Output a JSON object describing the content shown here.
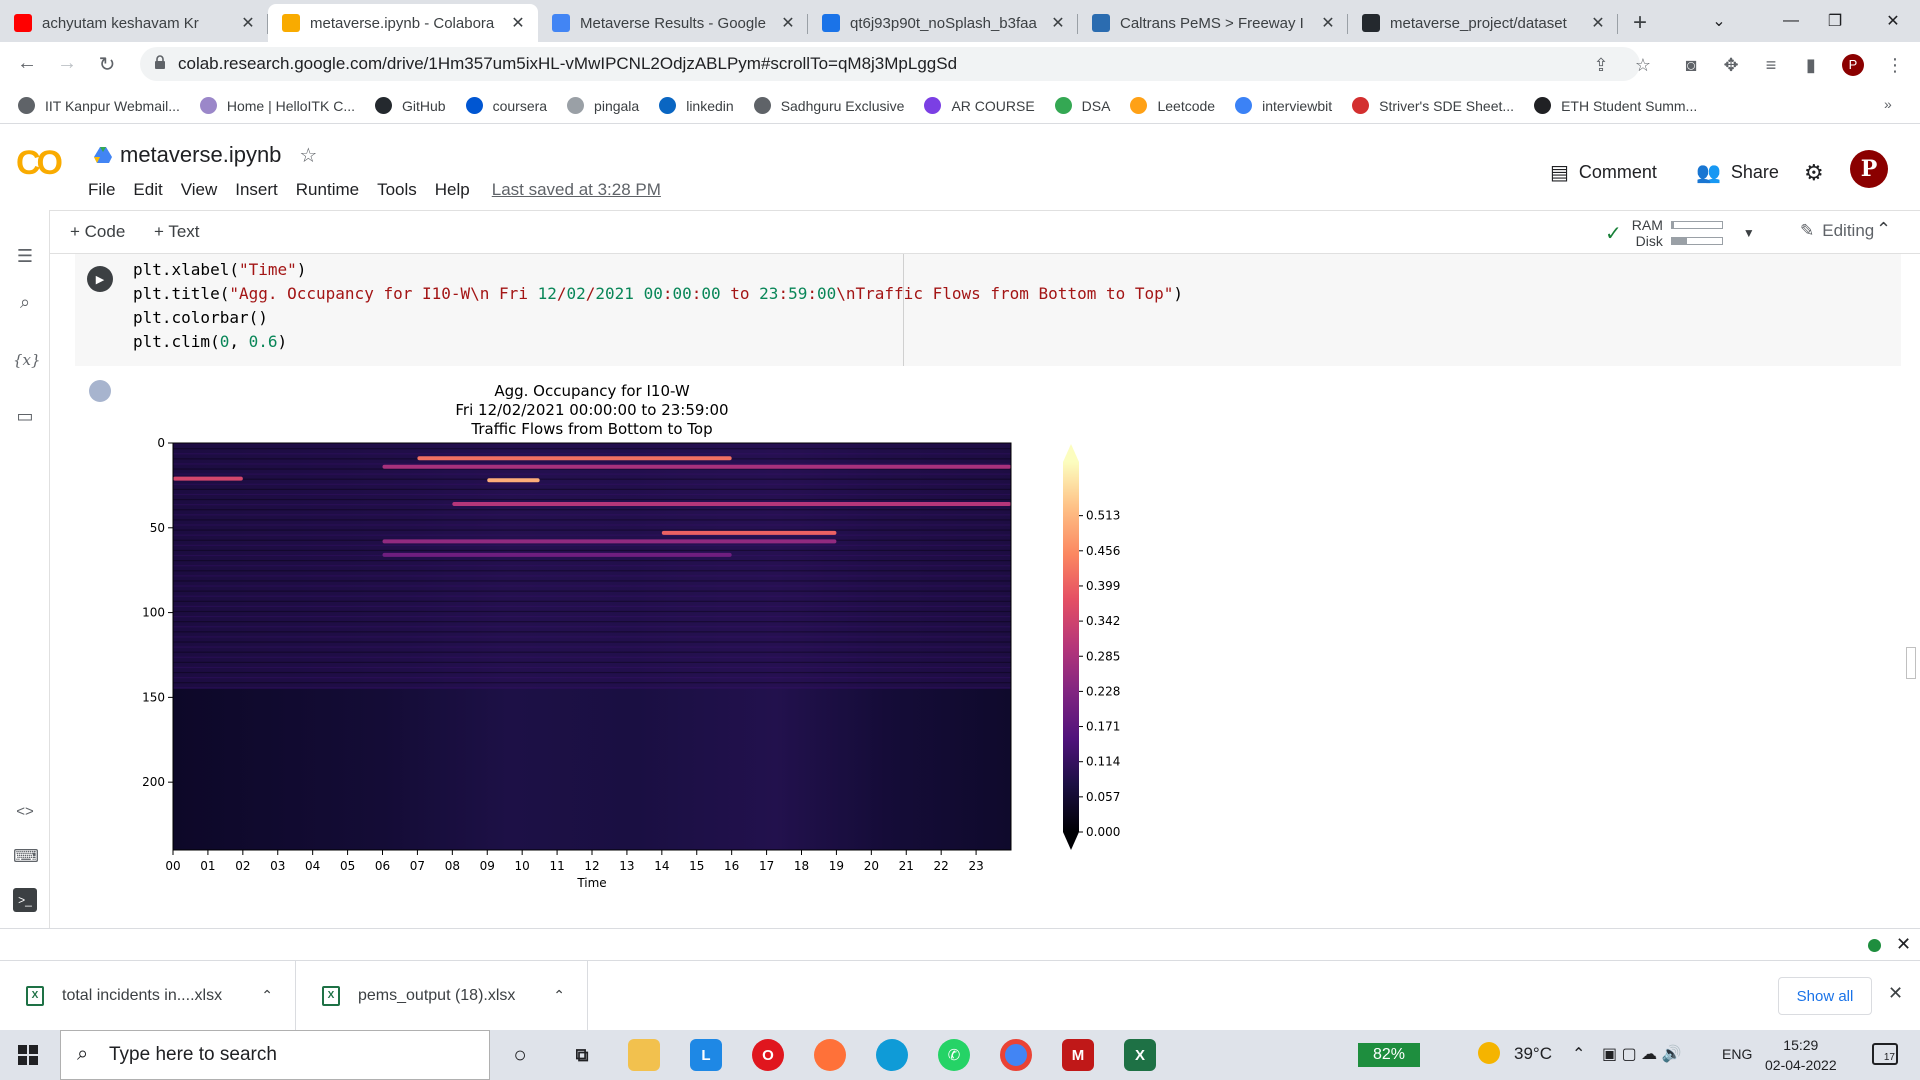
{
  "browser": {
    "tabs": [
      {
        "title": "achyutam keshavam Kr",
        "favicon": "youtube-icon",
        "color": "#ff0000"
      },
      {
        "title": "metaverse.ipynb - Colabora",
        "favicon": "colab-icon",
        "color": "#f9ab00",
        "active": true
      },
      {
        "title": "Metaverse Results - Google",
        "favicon": "docs-icon",
        "color": "#4285f4"
      },
      {
        "title": "qt6j93p90t_noSplash_b3faa",
        "favicon": "loading-icon",
        "color": "#1a73e8"
      },
      {
        "title": "Caltrans PeMS > Freeway I",
        "favicon": "pems-icon",
        "color": "#2b6cb0"
      },
      {
        "title": "metaverse_project/dataset",
        "favicon": "github-icon",
        "color": "#24292e"
      }
    ],
    "url": "colab.research.google.com/drive/1Hm357um5ixHL-vMwIPCNL2OdjzABLPym#scrollTo=qM8j3MpLggSd",
    "bookmarks": [
      {
        "label": "IIT Kanpur Webmail...",
        "color": "#5f6368"
      },
      {
        "label": "Home | HelloITK C...",
        "color": "#9b87c9"
      },
      {
        "label": "GitHub",
        "color": "#24292e"
      },
      {
        "label": "coursera",
        "color": "#0056d2"
      },
      {
        "label": "pingala",
        "color": "#9aa0a6"
      },
      {
        "label": "linkedin",
        "color": "#0a66c2"
      },
      {
        "label": "Sadhguru Exclusive",
        "color": "#5f6368"
      },
      {
        "label": "AR COURSE",
        "color": "#7b3fe4"
      },
      {
        "label": "DSA",
        "color": "#34a853"
      },
      {
        "label": "Leetcode",
        "color": "#ffa116"
      },
      {
        "label": "interviewbit",
        "color": "#3b82f6"
      },
      {
        "label": "Striver's SDE Sheet...",
        "color": "#d32f2f"
      },
      {
        "label": "ETH Student Summ...",
        "color": "#202124"
      }
    ]
  },
  "colab": {
    "notebook_name": "metaverse.ipynb",
    "menus": [
      "File",
      "Edit",
      "View",
      "Insert",
      "Runtime",
      "Tools",
      "Help"
    ],
    "last_saved": "Last saved at 3:28 PM",
    "comment_label": "Comment",
    "share_label": "Share",
    "avatar_letter": "P",
    "add_code": "+ Code",
    "add_text": "+ Text",
    "ram_label": "RAM",
    "disk_label": "Disk",
    "ram_fraction": 0.05,
    "disk_fraction": 0.3,
    "editing_label": "Editing"
  },
  "cell": {
    "code_lines": [
      "plt.xlabel(\"Time\")",
      "plt.title(\"Agg. Occupancy for I10-W\\n Fri 12/02/2021 00:00:00 to 23:59:00\\nTraffic Flows from Bottom to Top\")",
      "plt.colorbar()",
      "plt.clim(0, 0.6)"
    ]
  },
  "chart_data": {
    "type": "heatmap",
    "title_lines": [
      "Agg. Occupancy for I10-W",
      "Fri 12/02/2021 00:00:00 to 23:59:00",
      "Traffic Flows from Bottom to Top"
    ],
    "xlabel": "Time",
    "x_ticks": [
      "00",
      "01",
      "02",
      "03",
      "04",
      "05",
      "06",
      "07",
      "08",
      "09",
      "10",
      "11",
      "12",
      "13",
      "14",
      "15",
      "16",
      "17",
      "18",
      "19",
      "20",
      "21",
      "22",
      "23"
    ],
    "y_ticks": [
      0,
      50,
      100,
      150,
      200
    ],
    "y_range": [
      0,
      240
    ],
    "x_range": [
      0,
      24
    ],
    "colorbar_ticks": [
      "0.000",
      "0.057",
      "0.114",
      "0.171",
      "0.228",
      "0.285",
      "0.342",
      "0.399",
      "0.456",
      "0.513"
    ],
    "clim": [
      0,
      0.6
    ],
    "colormap": "magma",
    "hot_bands": [
      {
        "y": 9,
        "x_from": 7,
        "x_to": 16,
        "level": 0.42
      },
      {
        "y": 14,
        "x_from": 6,
        "x_to": 24,
        "level": 0.28
      },
      {
        "y": 21,
        "x_from": 0,
        "x_to": 2,
        "level": 0.35
      },
      {
        "y": 22,
        "x_from": 9,
        "x_to": 10.5,
        "level": 0.5
      },
      {
        "y": 36,
        "x_from": 8,
        "x_to": 24,
        "level": 0.3
      },
      {
        "y": 53,
        "x_from": 14,
        "x_to": 19,
        "level": 0.4
      },
      {
        "y": 58,
        "x_from": 6,
        "x_to": 19,
        "level": 0.25
      },
      {
        "y": 66,
        "x_from": 6,
        "x_to": 16,
        "level": 0.2
      }
    ]
  },
  "downloads": {
    "items": [
      "total incidents in....xlsx",
      "pems_output (18).xlsx"
    ],
    "show_all": "Show all"
  },
  "taskbar": {
    "search_placeholder": "Type here to search",
    "battery": "82%",
    "weather": "39°C",
    "language": "ENG",
    "time": "15:29",
    "date": "02-04-2022",
    "notifications": "17"
  }
}
